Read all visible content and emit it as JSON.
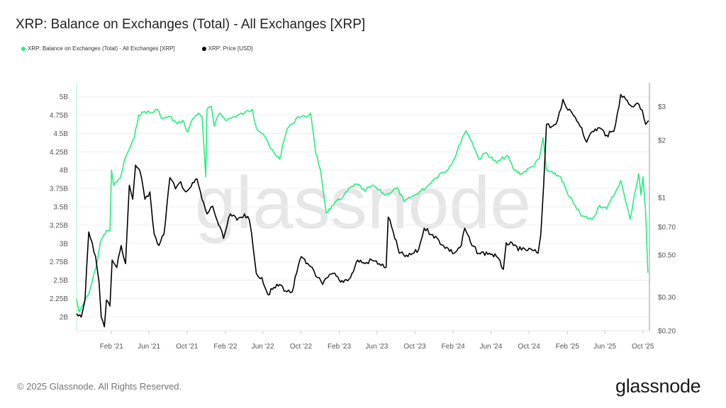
{
  "title": "XRP: Balance on Exchanges (Total) - All Exchanges [XRP]",
  "footer": "© 2025 Glassnode. All Rights Reserved.",
  "logo": "glassnode",
  "watermark": "glassnode",
  "colors": {
    "balance": "#22f07e",
    "price": "#000000",
    "grid": "#efefef",
    "watermark": "#e6e6e6"
  },
  "chart_data": {
    "type": "line",
    "title": "XRP: Balance on Exchanges (Total) - All Exchanges [XRP]",
    "legend_placement": "top-left",
    "grid": true,
    "x_range": [
      "2020-10-12",
      "2025-10-22"
    ],
    "x_ticks": [
      {
        "date": "2021-02-01",
        "label": "Feb '21"
      },
      {
        "date": "2021-06-01",
        "label": "Jun '21"
      },
      {
        "date": "2021-10-01",
        "label": "Oct '21"
      },
      {
        "date": "2022-02-01",
        "label": "Feb '22"
      },
      {
        "date": "2022-06-01",
        "label": "Jun '22"
      },
      {
        "date": "2022-10-01",
        "label": "Oct '22"
      },
      {
        "date": "2023-02-01",
        "label": "Feb '23"
      },
      {
        "date": "2023-06-01",
        "label": "Jun '23"
      },
      {
        "date": "2023-10-01",
        "label": "Oct '23"
      },
      {
        "date": "2024-02-01",
        "label": "Feb '24"
      },
      {
        "date": "2024-06-01",
        "label": "Jun '24"
      },
      {
        "date": "2024-10-01",
        "label": "Oct '24"
      },
      {
        "date": "2025-02-01",
        "label": "Feb '25"
      },
      {
        "date": "2025-06-01",
        "label": "Jun '25"
      },
      {
        "date": "2025-10-01",
        "label": "Oct '25"
      }
    ],
    "y_left": {
      "range": [
        1.81,
        5.19
      ],
      "unit": "B XRP",
      "ticks": [
        {
          "v": 2,
          "label": "2B"
        },
        {
          "v": 2.25,
          "label": "2.25B"
        },
        {
          "v": 2.5,
          "label": "2.5B"
        },
        {
          "v": 2.75,
          "label": "2.75B"
        },
        {
          "v": 3,
          "label": "3B"
        },
        {
          "v": 3.25,
          "label": "3.25B"
        },
        {
          "v": 3.5,
          "label": "3.5B"
        },
        {
          "v": 3.75,
          "label": "3.75B"
        },
        {
          "v": 4,
          "label": "4B"
        },
        {
          "v": 4.25,
          "label": "4.25B"
        },
        {
          "v": 4.5,
          "label": "4.5B"
        },
        {
          "v": 4.75,
          "label": "4.75B"
        },
        {
          "v": 5,
          "label": "5B"
        }
      ]
    },
    "y_right": {
      "scale": "log",
      "range": [
        0.2,
        3.99
      ],
      "unit": "USD",
      "ticks": [
        {
          "v": 0.2,
          "label": "$0.20"
        },
        {
          "v": 0.3,
          "label": "$0.30"
        },
        {
          "v": 0.5,
          "label": "$0.50"
        },
        {
          "v": 0.7,
          "label": "$0.70"
        },
        {
          "v": 1,
          "label": "$1"
        },
        {
          "v": 2,
          "label": "$2"
        },
        {
          "v": 3,
          "label": "$3"
        }
      ]
    },
    "series": [
      {
        "name": "XRP: Balance on Exchanges (Total) - All Exchanges [XRP]",
        "axis": "left",
        "points": [
          [
            "2020-10-12",
            2.24
          ],
          [
            "2020-10-20",
            2.07
          ],
          [
            "2020-11-03",
            2.18
          ],
          [
            "2020-11-20",
            2.31
          ],
          [
            "2020-12-12",
            2.65
          ],
          [
            "2020-12-28",
            3.03
          ],
          [
            "2021-01-16",
            3.18
          ],
          [
            "2021-01-27",
            3.18
          ],
          [
            "2021-02-01",
            4.0
          ],
          [
            "2021-02-08",
            3.79
          ],
          [
            "2021-03-01",
            3.89
          ],
          [
            "2021-03-18",
            4.18
          ],
          [
            "2021-03-30",
            4.29
          ],
          [
            "2021-04-15",
            4.44
          ],
          [
            "2021-04-29",
            4.75
          ],
          [
            "2021-05-19",
            4.8
          ],
          [
            "2021-06-11",
            4.78
          ],
          [
            "2021-06-27",
            4.83
          ],
          [
            "2021-07-15",
            4.7
          ],
          [
            "2021-08-07",
            4.73
          ],
          [
            "2021-08-30",
            4.63
          ],
          [
            "2021-09-17",
            4.68
          ],
          [
            "2021-10-03",
            4.52
          ],
          [
            "2021-10-19",
            4.7
          ],
          [
            "2021-11-07",
            4.78
          ],
          [
            "2021-11-18",
            4.73
          ],
          [
            "2021-11-30",
            3.91
          ],
          [
            "2021-12-04",
            4.83
          ],
          [
            "2021-12-18",
            4.87
          ],
          [
            "2021-12-27",
            4.6
          ],
          [
            "2022-01-14",
            4.78
          ],
          [
            "2022-02-06",
            4.68
          ],
          [
            "2022-03-01",
            4.73
          ],
          [
            "2022-04-03",
            4.78
          ],
          [
            "2022-04-28",
            4.83
          ],
          [
            "2022-05-11",
            4.58
          ],
          [
            "2022-06-03",
            4.49
          ],
          [
            "2022-06-26",
            4.29
          ],
          [
            "2022-07-25",
            4.15
          ],
          [
            "2022-08-17",
            4.56
          ],
          [
            "2022-09-03",
            4.63
          ],
          [
            "2022-09-21",
            4.73
          ],
          [
            "2022-10-14",
            4.73
          ],
          [
            "2022-11-01",
            4.78
          ],
          [
            "2022-11-17",
            4.24
          ],
          [
            "2022-12-03",
            4.0
          ],
          [
            "2022-12-21",
            3.42
          ],
          [
            "2023-01-13",
            3.52
          ],
          [
            "2023-02-16",
            3.66
          ],
          [
            "2023-03-09",
            3.76
          ],
          [
            "2023-04-01",
            3.81
          ],
          [
            "2023-04-24",
            3.71
          ],
          [
            "2023-05-16",
            3.79
          ],
          [
            "2023-07-01",
            3.66
          ],
          [
            "2023-08-05",
            3.76
          ],
          [
            "2023-08-28",
            3.57
          ],
          [
            "2023-10-01",
            3.66
          ],
          [
            "2023-11-05",
            3.76
          ],
          [
            "2023-11-27",
            3.86
          ],
          [
            "2023-12-20",
            3.95
          ],
          [
            "2024-01-12",
            4.0
          ],
          [
            "2024-02-04",
            4.15
          ],
          [
            "2024-03-01",
            4.44
          ],
          [
            "2024-03-13",
            4.54
          ],
          [
            "2024-04-01",
            4.39
          ],
          [
            "2024-04-23",
            4.15
          ],
          [
            "2024-05-16",
            4.24
          ],
          [
            "2024-06-19",
            4.1
          ],
          [
            "2024-07-23",
            4.2
          ],
          [
            "2024-08-15",
            4.0
          ],
          [
            "2024-09-07",
            3.95
          ],
          [
            "2024-10-11",
            4.05
          ],
          [
            "2024-11-03",
            4.15
          ],
          [
            "2024-11-15",
            4.44
          ],
          [
            "2024-11-26",
            4.0
          ],
          [
            "2024-12-19",
            3.95
          ],
          [
            "2025-01-11",
            3.91
          ],
          [
            "2025-02-03",
            3.66
          ],
          [
            "2025-02-26",
            3.52
          ],
          [
            "2025-03-19",
            3.37
          ],
          [
            "2025-04-22",
            3.33
          ],
          [
            "2025-05-15",
            3.52
          ],
          [
            "2025-06-07",
            3.47
          ],
          [
            "2025-06-18",
            3.57
          ],
          [
            "2025-07-06",
            3.71
          ],
          [
            "2025-07-22",
            3.86
          ],
          [
            "2025-08-07",
            3.57
          ],
          [
            "2025-08-21",
            3.33
          ],
          [
            "2025-09-02",
            3.62
          ],
          [
            "2025-09-18",
            3.95
          ],
          [
            "2025-09-25",
            3.66
          ],
          [
            "2025-10-01",
            3.91
          ],
          [
            "2025-10-10",
            3.42
          ],
          [
            "2025-10-17",
            2.6
          ]
        ]
      },
      {
        "name": "XRP: Price [USD]",
        "axis": "right",
        "points": [
          [
            "2020-10-12",
            0.246
          ],
          [
            "2020-10-27",
            0.236
          ],
          [
            "2020-11-08",
            0.29
          ],
          [
            "2020-11-20",
            0.66
          ],
          [
            "2020-12-01",
            0.58
          ],
          [
            "2020-12-12",
            0.49
          ],
          [
            "2020-12-23",
            0.36
          ],
          [
            "2020-12-30",
            0.236
          ],
          [
            "2021-01-09",
            0.21
          ],
          [
            "2021-01-16",
            0.29
          ],
          [
            "2021-01-27",
            0.27
          ],
          [
            "2021-02-03",
            0.47
          ],
          [
            "2021-02-18",
            0.43
          ],
          [
            "2021-03-04",
            0.56
          ],
          [
            "2021-03-18",
            0.45
          ],
          [
            "2021-03-30",
            1.16
          ],
          [
            "2021-04-10",
            0.98
          ],
          [
            "2021-04-19",
            1.48
          ],
          [
            "2021-05-03",
            1.38
          ],
          [
            "2021-05-19",
            0.98
          ],
          [
            "2021-06-04",
            1.07
          ],
          [
            "2021-06-18",
            0.64
          ],
          [
            "2021-07-03",
            0.56
          ],
          [
            "2021-07-19",
            0.64
          ],
          [
            "2021-08-07",
            1.27
          ],
          [
            "2021-08-25",
            1.11
          ],
          [
            "2021-09-11",
            1.21
          ],
          [
            "2021-09-27",
            1.07
          ],
          [
            "2021-10-14",
            1.14
          ],
          [
            "2021-11-02",
            1.25
          ],
          [
            "2021-11-18",
            0.98
          ],
          [
            "2021-12-04",
            0.82
          ],
          [
            "2021-12-22",
            0.9
          ],
          [
            "2022-01-10",
            0.72
          ],
          [
            "2022-01-26",
            0.61
          ],
          [
            "2022-02-17",
            0.82
          ],
          [
            "2022-03-10",
            0.76
          ],
          [
            "2022-04-03",
            0.82
          ],
          [
            "2022-04-19",
            0.76
          ],
          [
            "2022-05-02",
            0.53
          ],
          [
            "2022-05-11",
            0.4
          ],
          [
            "2022-05-29",
            0.38
          ],
          [
            "2022-06-17",
            0.31
          ],
          [
            "2022-07-02",
            0.33
          ],
          [
            "2022-07-25",
            0.35
          ],
          [
            "2022-08-17",
            0.32
          ],
          [
            "2022-09-03",
            0.32
          ],
          [
            "2022-09-17",
            0.4
          ],
          [
            "2022-10-02",
            0.49
          ],
          [
            "2022-10-18",
            0.45
          ],
          [
            "2022-11-06",
            0.43
          ],
          [
            "2022-11-24",
            0.38
          ],
          [
            "2022-12-10",
            0.35
          ],
          [
            "2022-12-26",
            0.38
          ],
          [
            "2023-01-13",
            0.4
          ],
          [
            "2023-02-05",
            0.36
          ],
          [
            "2023-03-09",
            0.38
          ],
          [
            "2023-04-01",
            0.47
          ],
          [
            "2023-04-24",
            0.45
          ],
          [
            "2023-05-16",
            0.47
          ],
          [
            "2023-06-09",
            0.45
          ],
          [
            "2023-07-01",
            0.43
          ],
          [
            "2023-07-08",
            0.79
          ],
          [
            "2023-07-24",
            0.66
          ],
          [
            "2023-08-12",
            0.51
          ],
          [
            "2023-09-09",
            0.49
          ],
          [
            "2023-10-13",
            0.53
          ],
          [
            "2023-10-31",
            0.69
          ],
          [
            "2023-11-27",
            0.64
          ],
          [
            "2024-01-01",
            0.56
          ],
          [
            "2024-02-04",
            0.51
          ],
          [
            "2024-02-27",
            0.56
          ],
          [
            "2024-03-09",
            0.69
          ],
          [
            "2024-04-01",
            0.56
          ],
          [
            "2024-04-23",
            0.51
          ],
          [
            "2024-05-27",
            0.51
          ],
          [
            "2024-06-19",
            0.49
          ],
          [
            "2024-07-11",
            0.42
          ],
          [
            "2024-07-20",
            0.58
          ],
          [
            "2024-08-12",
            0.56
          ],
          [
            "2024-09-07",
            0.53
          ],
          [
            "2024-10-11",
            0.53
          ],
          [
            "2024-10-30",
            0.51
          ],
          [
            "2024-11-08",
            0.64
          ],
          [
            "2024-11-17",
            1.16
          ],
          [
            "2024-11-26",
            2.42
          ],
          [
            "2024-12-08",
            2.32
          ],
          [
            "2024-12-31",
            2.53
          ],
          [
            "2025-01-18",
            3.27
          ],
          [
            "2025-02-03",
            2.87
          ],
          [
            "2025-02-26",
            2.64
          ],
          [
            "2025-03-19",
            2.32
          ],
          [
            "2025-04-04",
            1.95
          ],
          [
            "2025-04-22",
            2.22
          ],
          [
            "2025-05-15",
            2.32
          ],
          [
            "2025-06-07",
            2.12
          ],
          [
            "2025-06-30",
            2.22
          ],
          [
            "2025-07-11",
            2.75
          ],
          [
            "2025-07-22",
            3.47
          ],
          [
            "2025-08-07",
            3.27
          ],
          [
            "2025-08-26",
            3.0
          ],
          [
            "2025-09-13",
            3.13
          ],
          [
            "2025-09-29",
            2.87
          ],
          [
            "2025-10-10",
            2.42
          ],
          [
            "2025-10-19",
            2.53
          ]
        ]
      }
    ]
  }
}
